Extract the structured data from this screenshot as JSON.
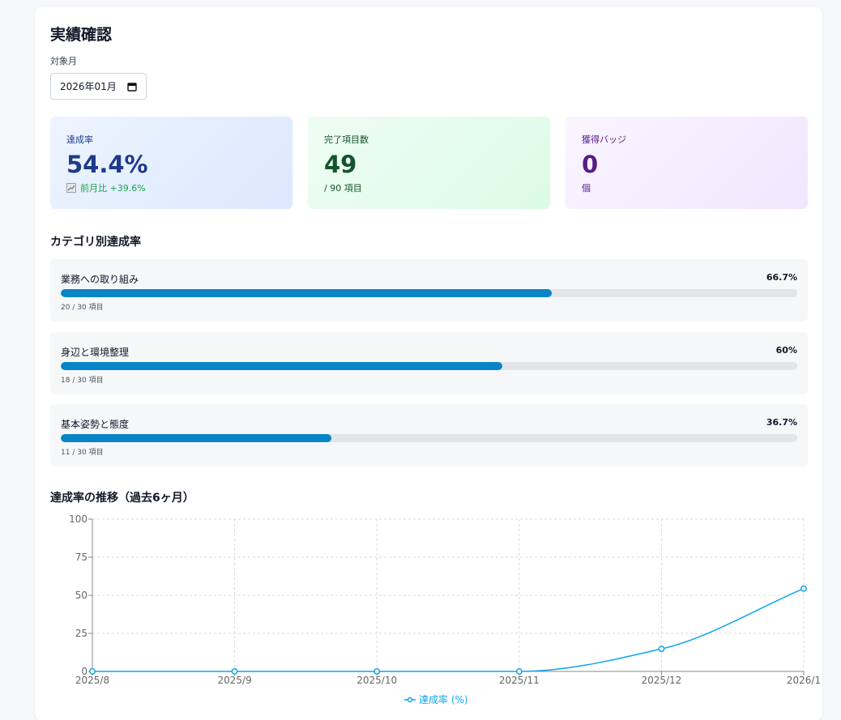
{
  "header": {
    "title": "実績確認",
    "month_label": "対象月",
    "month_value": "2026年01月"
  },
  "cards": [
    {
      "label": "達成率",
      "value": "54.4%",
      "sub": "前月比 +39.6%"
    },
    {
      "label": "完了項目数",
      "value": "49",
      "sub": "/ 90 項目"
    },
    {
      "label": "獲得バッジ",
      "value": "0",
      "sub": "個"
    }
  ],
  "category_section": {
    "title": "カテゴリ別達成率",
    "items": [
      {
        "name": "業務への取り組み",
        "rate": 66.7,
        "rate_label": "66.7%",
        "count": "20 / 30 項目"
      },
      {
        "name": "身辺と環境整理",
        "rate": 60,
        "rate_label": "60%",
        "count": "18 / 30 項目"
      },
      {
        "name": "基本姿勢と態度",
        "rate": 36.7,
        "rate_label": "36.7%",
        "count": "11 / 30 項目"
      }
    ]
  },
  "trend_title": "達成率の推移（過去6ヶ月）",
  "chart_data": {
    "type": "line",
    "categories": [
      "2025/8",
      "2025/9",
      "2025/10",
      "2025/11",
      "2025/12",
      "2026/1"
    ],
    "series": [
      {
        "name": "達成率 (%)",
        "color": "#0ea5e9",
        "values": [
          0,
          0,
          0,
          0,
          14.8,
          54.4
        ]
      }
    ],
    "ylim": [
      0,
      100
    ],
    "yticks": [
      0,
      25,
      50,
      75,
      100
    ],
    "grid": true,
    "legend": "bottom"
  }
}
